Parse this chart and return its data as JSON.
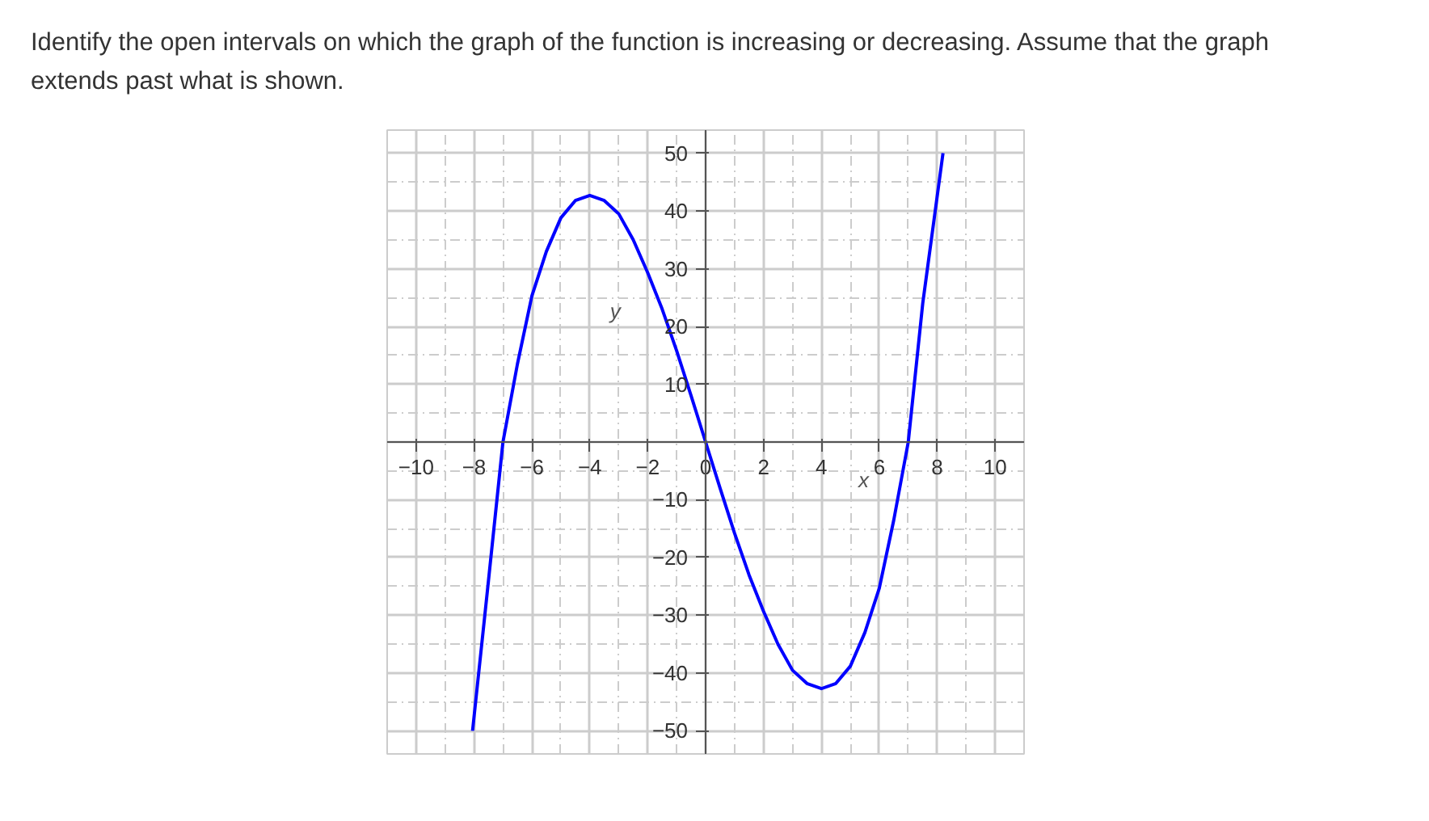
{
  "chart_data": {
    "type": "line",
    "title": "Identify the open intervals on which the graph of the function is increasing or decreasing. Assume that the graph extends past what is shown.",
    "xlabel": "x",
    "ylabel": "y",
    "series": [
      {
        "color": "#0000ff",
        "x": [
          -8.05,
          -7.5,
          -7,
          -6.5,
          -6,
          -5.5,
          -5,
          -4.5,
          -4,
          -3.5,
          -3,
          -2.5,
          -2,
          -1.5,
          -1,
          -0.5,
          0,
          0.5,
          1,
          1.5,
          2,
          2.5,
          3,
          3.5,
          4,
          4.5,
          5,
          5.5,
          6,
          6.5,
          7,
          7.5,
          8.2
        ],
        "values": [
          -50,
          -24,
          0,
          13.5,
          25.3,
          33,
          38.8,
          41.8,
          42.7,
          41.8,
          39.5,
          35,
          29.3,
          23,
          15.8,
          8,
          0,
          -8,
          -15.8,
          -23,
          -29.3,
          -35,
          -39.5,
          -41.8,
          -42.7,
          -41.8,
          -38.8,
          -33,
          -25.3,
          -13.5,
          0,
          24,
          50
        ]
      }
    ],
    "xlim": [
      -11,
      11
    ],
    "ylim": [
      -54,
      54
    ],
    "xticks": [
      -10,
      -8,
      -6,
      -4,
      -2,
      0,
      2,
      4,
      6,
      8,
      10
    ],
    "yticks": [
      -50,
      -40,
      -30,
      -20,
      -10,
      {
        "value": 0,
        "label": null
      },
      10,
      20,
      30,
      40,
      50
    ],
    "grid": true,
    "marker": "none",
    "line_style": "solid"
  }
}
